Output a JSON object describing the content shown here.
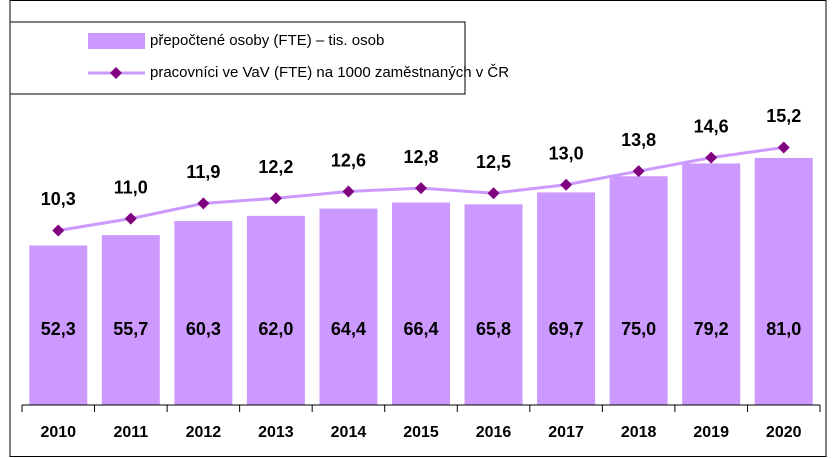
{
  "chart_data": {
    "type": "bar_line",
    "categories": [
      "2010",
      "2011",
      "2012",
      "2013",
      "2014",
      "2015",
      "2016",
      "2017",
      "2018",
      "2019",
      "2020"
    ],
    "series": [
      {
        "name": "přepočtené osoby (FTE) – tis. osob",
        "type": "bar",
        "color": "#cc99ff",
        "values": [
          52.3,
          55.7,
          60.3,
          62.0,
          64.4,
          66.4,
          65.8,
          69.7,
          75.0,
          79.2,
          81.0
        ],
        "value_labels": [
          "52,3",
          "55,7",
          "60,3",
          "62,0",
          "64,4",
          "66,4",
          "65,8",
          "69,7",
          "75,0",
          "79,2",
          "81,0"
        ]
      },
      {
        "name": "pracovníci ve VaV (FTE) na 1000 zaměstnaných v ČR",
        "type": "line",
        "axis": "y2",
        "color": "#cc99ff",
        "marker_color": "#800080",
        "values": [
          10.3,
          11.0,
          11.9,
          12.2,
          12.6,
          12.8,
          12.5,
          13.0,
          13.8,
          14.6,
          15.2
        ],
        "value_labels": [
          "10,3",
          "11,0",
          "11,9",
          "12,2",
          "12,6",
          "12,8",
          "12,5",
          "13,0",
          "13,8",
          "14,6",
          "15,2"
        ]
      }
    ],
    "ylim": [
      0,
      100
    ],
    "y2lim": [
      0,
      18
    ]
  }
}
